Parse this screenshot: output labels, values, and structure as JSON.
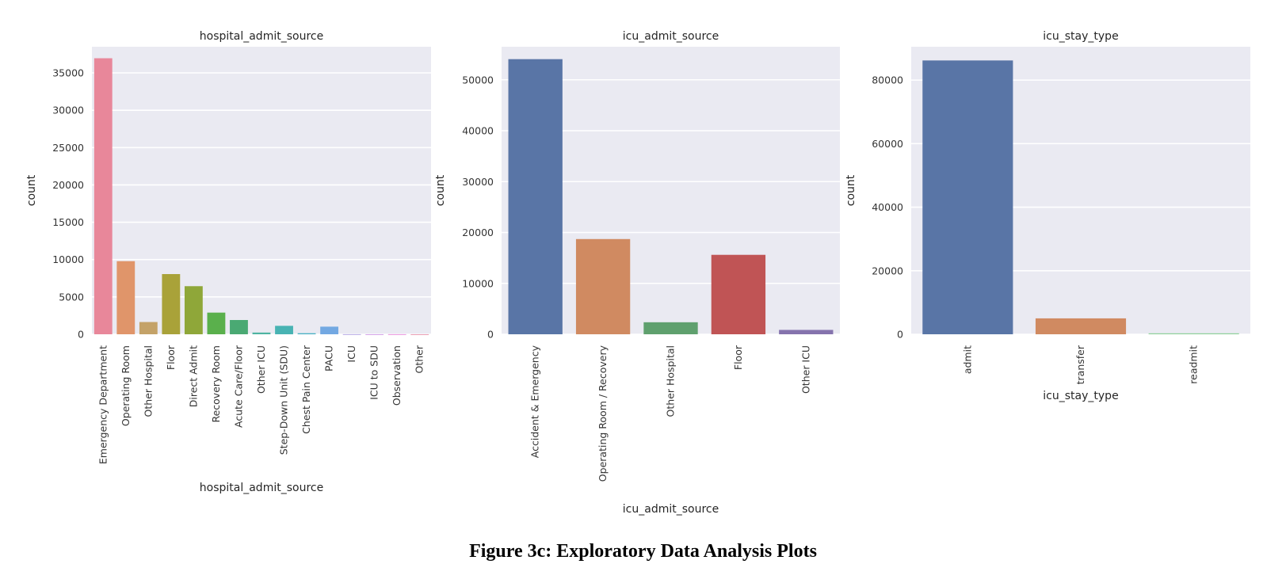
{
  "figure": {
    "caption": "Figure 3c: Exploratory Data Analysis Plots"
  },
  "chart_data": [
    {
      "type": "bar",
      "title": "hospital_admit_source",
      "xlabel": "hospital_admit_source",
      "ylabel": "count",
      "ylim": [
        0,
        38500
      ],
      "yticks": [
        0,
        5000,
        10000,
        15000,
        20000,
        25000,
        30000,
        35000
      ],
      "grid": true,
      "categories": [
        "Emergency Department",
        "Operating Room",
        "Other Hospital",
        "Floor",
        "Direct Admit",
        "Recovery Room",
        "Acute Care/Floor",
        "Other ICU",
        "Step-Down Unit (SDU)",
        "Chest Pain Center",
        "PACU",
        "ICU",
        "ICU to SDU",
        "Observation",
        "Other"
      ],
      "values": [
        36960,
        9790,
        1640,
        8060,
        6440,
        2900,
        1910,
        230,
        1130,
        140,
        1020,
        10,
        5,
        10,
        5
      ],
      "colors": [
        "#e8879a",
        "#e0956a",
        "#c4a268",
        "#a9a239",
        "#8fa739",
        "#5ab04c",
        "#4aa973",
        "#4eb4a2",
        "#48b3b3",
        "#49b0c4",
        "#73a8e2",
        "#a596e0",
        "#c78ae2",
        "#e478d6",
        "#e4829f"
      ]
    },
    {
      "type": "bar",
      "title": "icu_admit_source",
      "xlabel": "icu_admit_source",
      "ylabel": "count",
      "ylim": [
        0,
        56500
      ],
      "yticks": [
        0,
        10000,
        20000,
        30000,
        40000,
        50000
      ],
      "grid": true,
      "categories": [
        "Accident & Emergency",
        "Operating Room / Recovery",
        "Other Hospital",
        "Floor",
        "Other ICU"
      ],
      "values": [
        54060,
        18710,
        2360,
        15610,
        860
      ],
      "colors": [
        "#5975a6",
        "#d08a61",
        "#5fa06e",
        "#c05455",
        "#8573ad"
      ]
    },
    {
      "type": "bar",
      "title": "icu_stay_type",
      "xlabel": "icu_stay_type",
      "ylabel": "count",
      "ylim": [
        0,
        90500
      ],
      "yticks": [
        0,
        20000,
        40000,
        60000,
        80000
      ],
      "grid": true,
      "categories": [
        "admit",
        "transfer",
        "readmit"
      ],
      "values": [
        86180,
        5010,
        300
      ],
      "colors": [
        "#5975a6",
        "#d08a61",
        "#8ed19a"
      ]
    }
  ]
}
